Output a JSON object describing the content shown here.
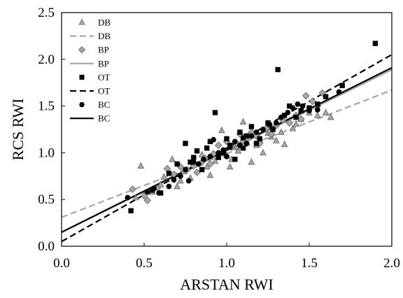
{
  "chart_data": {
    "type": "scatter",
    "title": "",
    "xlabel": "ARSTAN RWI",
    "ylabel": "RCS RWI",
    "xlim": [
      0.0,
      2.0
    ],
    "ylim": [
      0.0,
      2.5
    ],
    "xticks": [
      "0.0",
      "0.5",
      "1.0",
      "1.5",
      "2.0"
    ],
    "yticks": [
      "0.0",
      "0.5",
      "1.0",
      "1.5",
      "2.0",
      "2.5"
    ],
    "grid": false,
    "legend_position": "top-left",
    "series": [
      {
        "name": "DB",
        "marker": "triangle",
        "color": "#a6a6a6",
        "points": [
          [
            0.48,
            0.86
          ],
          [
            0.45,
            0.52
          ],
          [
            0.55,
            0.58
          ],
          [
            0.6,
            0.66
          ],
          [
            0.62,
            0.74
          ],
          [
            0.67,
            0.93
          ],
          [
            0.7,
            0.64
          ],
          [
            0.72,
            0.7
          ],
          [
            0.74,
            0.8
          ],
          [
            0.78,
            0.73
          ],
          [
            0.8,
            0.87
          ],
          [
            0.85,
            0.98
          ],
          [
            0.88,
            0.85
          ],
          [
            0.9,
            0.76
          ],
          [
            0.93,
            0.91
          ],
          [
            0.97,
            1.24
          ],
          [
            1.0,
            0.97
          ],
          [
            1.02,
            0.85
          ],
          [
            1.03,
            0.93
          ],
          [
            1.05,
            1.06
          ],
          [
            1.07,
            1.02
          ],
          [
            1.1,
            1.33
          ],
          [
            1.12,
            1.12
          ],
          [
            1.15,
            0.9
          ],
          [
            1.18,
            1.08
          ],
          [
            1.2,
            1.14
          ],
          [
            1.22,
            1.0
          ],
          [
            1.25,
            1.21
          ],
          [
            1.27,
            1.17
          ],
          [
            1.3,
            1.13
          ],
          [
            1.33,
            1.22
          ],
          [
            1.35,
            1.09
          ],
          [
            1.4,
            1.26
          ],
          [
            1.42,
            1.31
          ],
          [
            1.45,
            1.36
          ],
          [
            1.5,
            1.43
          ],
          [
            1.55,
            1.4
          ],
          [
            1.6,
            1.43
          ],
          [
            1.63,
            1.38
          ]
        ]
      },
      {
        "name": "BP",
        "marker": "diamond",
        "color": "#a6a6a6",
        "points": [
          [
            0.43,
            0.61
          ],
          [
            0.5,
            0.54
          ],
          [
            0.52,
            0.49
          ],
          [
            0.58,
            0.62
          ],
          [
            0.64,
            0.83
          ],
          [
            0.68,
            0.77
          ],
          [
            0.72,
            0.85
          ],
          [
            0.76,
            0.82
          ],
          [
            0.8,
            0.86
          ],
          [
            0.82,
            0.79
          ],
          [
            0.85,
            0.9
          ],
          [
            0.87,
            0.94
          ],
          [
            0.9,
            0.88
          ],
          [
            0.92,
            0.99
          ],
          [
            0.95,
            1.08
          ],
          [
            0.98,
            1.0
          ],
          [
            1.0,
            1.12
          ],
          [
            1.03,
            1.06
          ],
          [
            1.06,
            1.1
          ],
          [
            1.08,
            1.2
          ],
          [
            1.1,
            1.12
          ],
          [
            1.13,
            1.15
          ],
          [
            1.15,
            1.22
          ],
          [
            1.18,
            1.18
          ],
          [
            1.2,
            1.1
          ],
          [
            1.24,
            1.26
          ],
          [
            1.27,
            1.2
          ],
          [
            1.3,
            1.29
          ],
          [
            1.34,
            1.35
          ],
          [
            1.38,
            1.32
          ],
          [
            1.42,
            1.4
          ],
          [
            1.45,
            1.36
          ],
          [
            1.48,
            1.61
          ],
          [
            1.52,
            1.55
          ],
          [
            1.55,
            1.5
          ],
          [
            1.58,
            1.64
          ]
        ]
      },
      {
        "name": "OT",
        "marker": "square",
        "color": "#000000",
        "points": [
          [
            0.42,
            0.38
          ],
          [
            0.55,
            0.6
          ],
          [
            0.6,
            0.57
          ],
          [
            0.65,
            0.78
          ],
          [
            0.7,
            0.88
          ],
          [
            0.75,
            1.1
          ],
          [
            0.78,
            0.9
          ],
          [
            0.8,
            0.95
          ],
          [
            0.82,
            1.02
          ],
          [
            0.85,
            0.82
          ],
          [
            0.88,
            1.05
          ],
          [
            0.9,
            1.12
          ],
          [
            0.93,
            1.43
          ],
          [
            0.95,
            0.95
          ],
          [
            0.98,
            1.0
          ],
          [
            1.0,
            1.15
          ],
          [
            1.02,
            1.08
          ],
          [
            1.05,
            0.93
          ],
          [
            1.08,
            1.22
          ],
          [
            1.1,
            1.05
          ],
          [
            1.12,
            1.18
          ],
          [
            1.15,
            1.28
          ],
          [
            1.18,
            1.1
          ],
          [
            1.2,
            1.15
          ],
          [
            1.25,
            1.32
          ],
          [
            1.28,
            1.25
          ],
          [
            1.31,
            1.89
          ],
          [
            1.35,
            1.4
          ],
          [
            1.38,
            1.5
          ],
          [
            1.42,
            1.38
          ],
          [
            1.45,
            1.45
          ],
          [
            1.5,
            1.48
          ],
          [
            1.55,
            1.52
          ],
          [
            1.6,
            1.6
          ],
          [
            1.7,
            1.72
          ],
          [
            1.9,
            2.17
          ]
        ]
      },
      {
        "name": "BC",
        "marker": "circle",
        "color": "#000000",
        "points": [
          [
            0.4,
            0.52
          ],
          [
            0.52,
            0.58
          ],
          [
            0.56,
            0.62
          ],
          [
            0.59,
            0.57
          ],
          [
            0.65,
            0.64
          ],
          [
            0.68,
            0.71
          ],
          [
            0.72,
            0.75
          ],
          [
            0.75,
            0.82
          ],
          [
            0.77,
            0.7
          ],
          [
            0.8,
            0.9
          ],
          [
            0.83,
            0.88
          ],
          [
            0.86,
            0.93
          ],
          [
            0.9,
            0.96
          ],
          [
            0.92,
            1.14
          ],
          [
            0.95,
            1.0
          ],
          [
            0.98,
            1.03
          ],
          [
            1.0,
            0.96
          ],
          [
            1.02,
            1.06
          ],
          [
            1.05,
            1.12
          ],
          [
            1.08,
            1.08
          ],
          [
            1.1,
            1.16
          ],
          [
            1.12,
            1.1
          ],
          [
            1.15,
            1.18
          ],
          [
            1.18,
            1.22
          ],
          [
            1.22,
            1.25
          ],
          [
            1.26,
            1.3
          ],
          [
            1.3,
            1.32
          ],
          [
            1.33,
            1.38
          ],
          [
            1.37,
            1.43
          ],
          [
            1.4,
            1.48
          ],
          [
            1.43,
            1.52
          ],
          [
            1.46,
            1.5
          ],
          [
            1.5,
            1.45
          ],
          [
            1.55,
            1.46
          ],
          [
            1.68,
            1.65
          ]
        ]
      }
    ],
    "fit_lines": [
      {
        "name": "DB",
        "style": "dashed",
        "color": "#a6a6a6",
        "intercept": 0.31,
        "slope": 0.68
      },
      {
        "name": "BP",
        "style": "solid",
        "color": "#a6a6a6",
        "intercept": 0.15,
        "slope": 0.87
      },
      {
        "name": "OT",
        "style": "dashed",
        "color": "#000000",
        "intercept": 0.05,
        "slope": 1.0
      },
      {
        "name": "BC",
        "style": "solid",
        "color": "#000000",
        "intercept": 0.15,
        "slope": 0.88
      }
    ],
    "legend": [
      {
        "label": "DB",
        "kind": "marker",
        "marker": "triangle",
        "color": "#a6a6a6"
      },
      {
        "label": "DB",
        "kind": "line",
        "style": "dashed",
        "color": "#a6a6a6"
      },
      {
        "label": "BP",
        "kind": "marker",
        "marker": "diamond",
        "color": "#a6a6a6"
      },
      {
        "label": "BP",
        "kind": "line",
        "style": "solid",
        "color": "#a6a6a6"
      },
      {
        "label": "OT",
        "kind": "marker",
        "marker": "square",
        "color": "#000000"
      },
      {
        "label": "OT",
        "kind": "line",
        "style": "dashed",
        "color": "#000000"
      },
      {
        "label": "BC",
        "kind": "marker",
        "marker": "circle",
        "color": "#000000"
      },
      {
        "label": "BC",
        "kind": "line",
        "style": "solid",
        "color": "#000000"
      }
    ]
  }
}
